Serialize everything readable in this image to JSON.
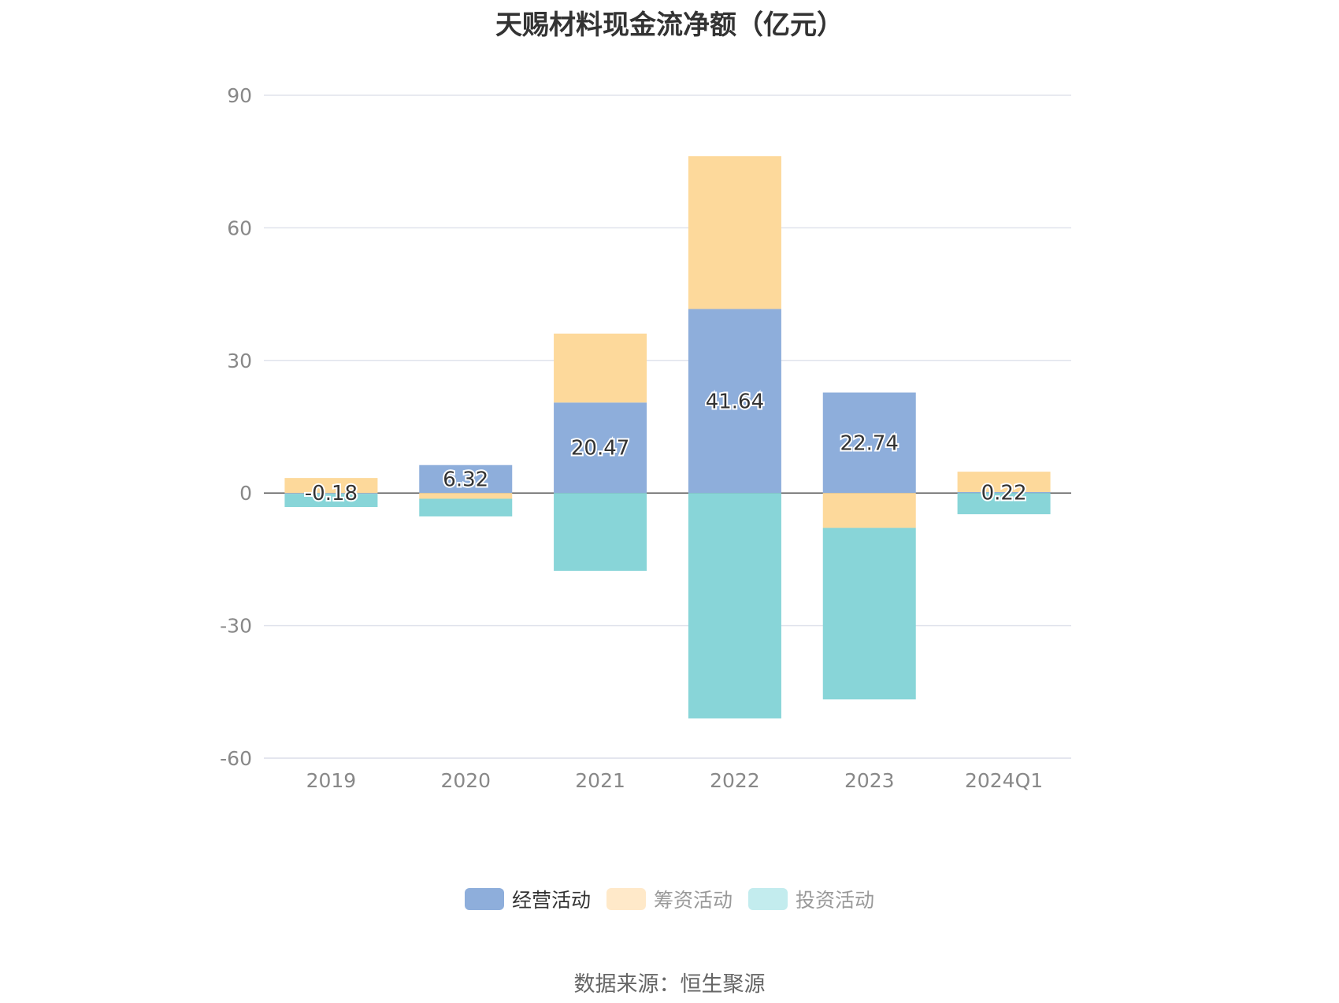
{
  "title": "天赐材料现金流净额（亿元）",
  "source": "数据来源：恒生聚源",
  "chart_data": {
    "type": "bar",
    "stacked": true,
    "categories": [
      "2019",
      "2020",
      "2021",
      "2022",
      "2023",
      "2024Q1"
    ],
    "ylim": [
      -60,
      90
    ],
    "yticks": [
      90,
      60,
      30,
      0,
      -30,
      -60
    ],
    "grid": true,
    "legend_position": "bottom-center",
    "series": [
      {
        "name": "经营活动",
        "color": "#8eaedb",
        "legend_color": "#8eaedb",
        "values": [
          -0.18,
          6.32,
          20.47,
          41.64,
          22.74,
          0.22
        ],
        "labels": [
          "-0.18",
          "6.32",
          "20.47",
          "41.64",
          "22.74",
          "0.22"
        ]
      },
      {
        "name": "筹资活动",
        "color": "#fdd99b",
        "legend_color": "#ffe9c9",
        "values": [
          3.4,
          -1.3,
          15.6,
          34.6,
          -7.9,
          4.6
        ]
      },
      {
        "name": "投资活动",
        "color": "#88d5d8",
        "legend_color": "#c3ecee",
        "values": [
          -3.0,
          -4.0,
          -17.6,
          -51.0,
          -38.8,
          -4.8
        ]
      }
    ]
  }
}
